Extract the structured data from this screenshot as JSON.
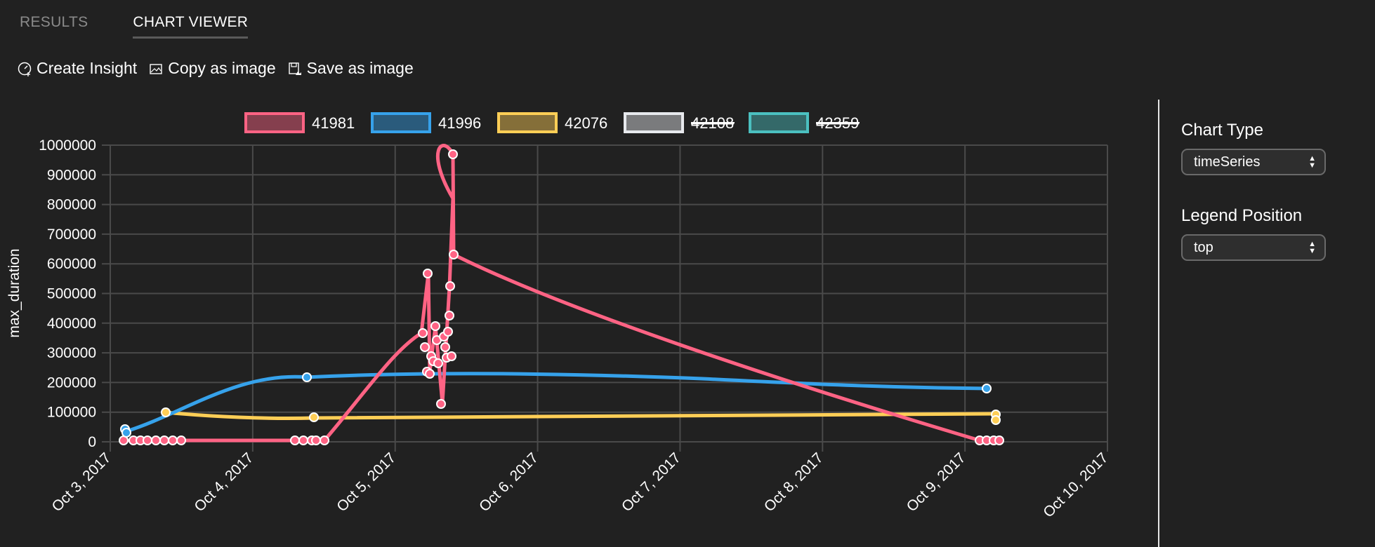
{
  "tabs": [
    {
      "label": "RESULTS",
      "active": false
    },
    {
      "label": "CHART VIEWER",
      "active": true
    }
  ],
  "toolbar": {
    "create_insight": {
      "label": "Create Insight",
      "icon": "dashboard-icon"
    },
    "copy_image": {
      "label": "Copy as image",
      "icon": "image-icon"
    },
    "save_image": {
      "label": "Save as image",
      "icon": "save-icon"
    }
  },
  "side_panel": {
    "chart_type": {
      "label": "Chart Type",
      "value": "timeSeries"
    },
    "legend_position": {
      "label": "Legend Position",
      "value": "top"
    }
  },
  "chart_data": {
    "type": "line",
    "title": "",
    "xlabel": "",
    "ylabel": "max_duration",
    "ylim": [
      0,
      1000000
    ],
    "yticks": [
      "0",
      "100000",
      "200000",
      "300000",
      "400000",
      "500000",
      "600000",
      "700000",
      "800000",
      "900000",
      "1000000"
    ],
    "xticks": [
      "Oct 3, 2017",
      "Oct 4, 2017",
      "Oct 5, 2017",
      "Oct 6, 2017",
      "Oct 7, 2017",
      "Oct 8, 2017",
      "Oct 9, 2017",
      "Oct 10, 2017"
    ],
    "grid": true,
    "legend_position": "top",
    "series": [
      {
        "name": "41981",
        "color": "#ff6384",
        "hidden": false,
        "points": [
          [
            "Oct 3 02:00",
            5000
          ],
          [
            "Oct 3 12:00",
            5000
          ],
          [
            "Oct 4 07:00",
            5000
          ],
          [
            "Oct 4 11:00",
            5000
          ],
          [
            "Oct 5 06:00",
            365000
          ],
          [
            "Oct 5 07:00",
            570000
          ],
          [
            "Oct 5 07:00",
            235000
          ],
          [
            "Oct 5 08:00",
            390000
          ],
          [
            "Oct 5 12:00",
            135000
          ],
          [
            "Oct 5 13:00",
            525000
          ],
          [
            "Oct 5 15:00",
            965000
          ],
          [
            "Oct 5 16:00",
            630000
          ],
          [
            "Oct 9 03:00",
            5000
          ],
          [
            "Oct 9 07:00",
            5000
          ]
        ]
      },
      {
        "name": "41996",
        "color": "#36a2eb",
        "hidden": false,
        "points": [
          [
            "Oct 3 02:00",
            45000
          ],
          [
            "Oct 3 02:00",
            35000
          ],
          [
            "Oct 4 09:00",
            220000
          ],
          [
            "Oct 9 04:00",
            183000
          ]
        ]
      },
      {
        "name": "42076",
        "color": "#ffce56",
        "hidden": false,
        "points": [
          [
            "Oct 3 09:00",
            102000
          ],
          [
            "Oct 4 11:00",
            87000
          ],
          [
            "Oct 9 05:00",
            96000
          ],
          [
            "Oct 9 05:00",
            78000
          ]
        ]
      },
      {
        "name": "42108",
        "color": "#e7e9ed",
        "hidden": true,
        "points": []
      },
      {
        "name": "42359",
        "color": "#4bc0c0",
        "hidden": true,
        "points": []
      }
    ]
  }
}
